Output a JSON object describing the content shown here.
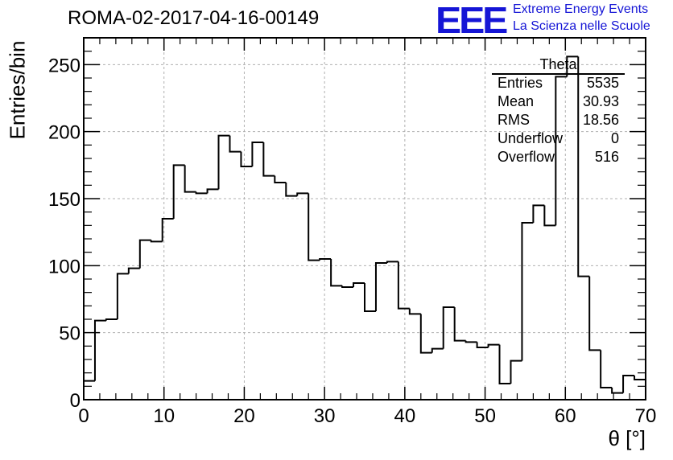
{
  "header": {
    "run_title": "ROMA-02-2017-04-16-00149",
    "logo_text": "EEE",
    "logo_line1": "Extreme Energy Events",
    "logo_line2": "La Scienza nelle Scuole"
  },
  "stats": {
    "title": "Theta",
    "rows": [
      {
        "key": "Entries",
        "value": "5535"
      },
      {
        "key": "Mean",
        "value": "30.93"
      },
      {
        "key": "RMS",
        "value": "18.56"
      },
      {
        "key": "Underflow",
        "value": "0"
      },
      {
        "key": "Overflow",
        "value": "516"
      }
    ]
  },
  "chart_data": {
    "type": "bar",
    "style": "step-histogram",
    "title": "ROMA-02-2017-04-16-00149",
    "xlabel": "θ [°]",
    "ylabel": "Entries/bin",
    "xlim": [
      0,
      70
    ],
    "ylim": [
      0,
      270
    ],
    "bin_width": 1.4,
    "bin_edges_start": 0,
    "x_ticks": [
      0,
      10,
      20,
      30,
      40,
      50,
      60,
      70
    ],
    "y_ticks": [
      0,
      50,
      100,
      150,
      200,
      250
    ],
    "grid": true,
    "values": [
      14,
      59,
      60,
      94,
      98,
      119,
      118,
      135,
      175,
      155,
      154,
      157,
      197,
      185,
      174,
      192,
      167,
      162,
      152,
      154,
      104,
      105,
      85,
      84,
      87,
      66,
      102,
      103,
      68,
      64,
      35,
      38,
      69,
      44,
      43,
      39,
      41,
      12,
      29,
      132,
      145,
      130,
      241,
      256,
      92,
      37,
      9,
      5,
      18,
      15
    ]
  }
}
